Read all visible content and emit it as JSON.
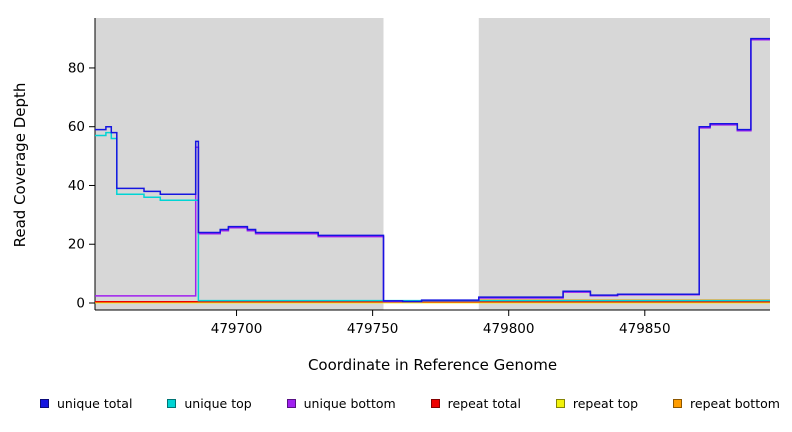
{
  "chart_data": {
    "type": "line",
    "subtype": "step-after",
    "xlabel": "Coordinate in Reference Genome",
    "ylabel": "Read Coverage Depth",
    "xlim": [
      479648,
      479896
    ],
    "ylim": [
      0,
      97
    ],
    "x_ticks": [
      479700,
      479750,
      479800,
      479850
    ],
    "y_ticks": [
      0,
      20,
      40,
      60,
      80
    ],
    "grid": false,
    "legend_position": "bottom",
    "panel_bg": "#d7d7d7",
    "highlight_region": {
      "x0": 479754,
      "x1": 479789,
      "color": "#ffffff"
    },
    "series": [
      {
        "name": "unique total",
        "color": "#1515e0",
        "points": [
          [
            479648,
            59
          ],
          [
            479652,
            60
          ],
          [
            479654,
            58
          ],
          [
            479656,
            39
          ],
          [
            479666,
            38
          ],
          [
            479672,
            37
          ],
          [
            479685,
            55
          ],
          [
            479686,
            24
          ],
          [
            479694,
            25
          ],
          [
            479697,
            26
          ],
          [
            479704,
            25
          ],
          [
            479707,
            24
          ],
          [
            479730,
            23
          ],
          [
            479754,
            0.7
          ],
          [
            479761,
            0.5
          ],
          [
            479768,
            1
          ],
          [
            479789,
            2
          ],
          [
            479818,
            2
          ],
          [
            479820,
            4
          ],
          [
            479830,
            2.7
          ],
          [
            479840,
            3
          ],
          [
            479870,
            60
          ],
          [
            479874,
            61
          ],
          [
            479884,
            59
          ],
          [
            479889,
            90
          ],
          [
            479896,
            90
          ]
        ]
      },
      {
        "name": "unique top",
        "color": "#00d4d4",
        "points": [
          [
            479648,
            57
          ],
          [
            479652,
            58
          ],
          [
            479654,
            56
          ],
          [
            479656,
            37
          ],
          [
            479666,
            36
          ],
          [
            479672,
            35
          ],
          [
            479685,
            35
          ],
          [
            479686,
            0.8
          ],
          [
            479896,
            0.8
          ]
        ]
      },
      {
        "name": "unique bottom",
        "color": "#a020f0",
        "points": [
          [
            479648,
            2.4
          ],
          [
            479685,
            53
          ],
          [
            479686,
            23.6
          ],
          [
            479694,
            24.6
          ],
          [
            479697,
            25.6
          ],
          [
            479704,
            24.6
          ],
          [
            479707,
            23.6
          ],
          [
            479730,
            22.6
          ],
          [
            479754,
            0.5
          ],
          [
            479768,
            0.7
          ],
          [
            479789,
            1.7
          ],
          [
            479818,
            1.7
          ],
          [
            479820,
            3.7
          ],
          [
            479830,
            2.5
          ],
          [
            479840,
            2.8
          ],
          [
            479870,
            59.6
          ],
          [
            479874,
            60.6
          ],
          [
            479884,
            58.6
          ],
          [
            479889,
            89.6
          ],
          [
            479896,
            89.6
          ]
        ]
      },
      {
        "name": "repeat total",
        "color": "#ee0000",
        "points": [
          [
            479648,
            0.4
          ],
          [
            479896,
            0.4
          ]
        ]
      },
      {
        "name": "repeat top",
        "color": "#f2f20a",
        "points": [
          [
            479648,
            0.15
          ],
          [
            479896,
            0.15
          ]
        ]
      },
      {
        "name": "repeat bottom",
        "color": "#ff9d00",
        "points": [
          [
            479648,
            0.28
          ],
          [
            479789,
            1.0
          ],
          [
            479896,
            1.0
          ]
        ]
      }
    ]
  }
}
